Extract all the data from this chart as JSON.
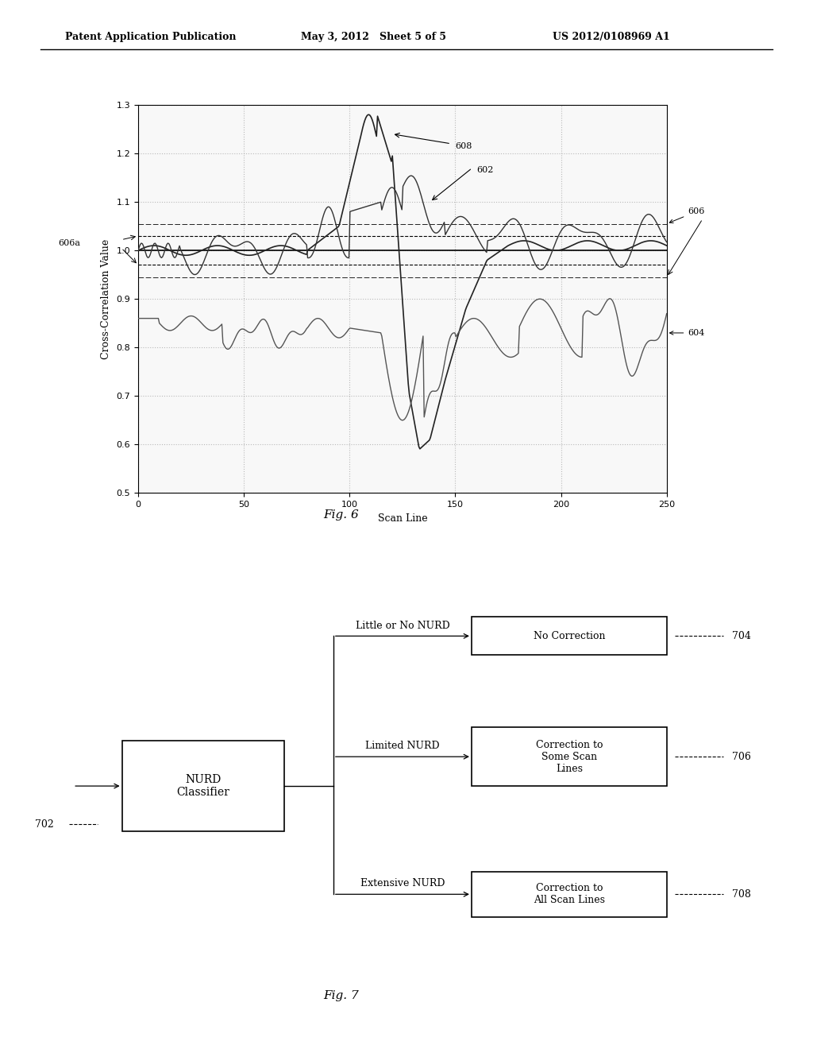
{
  "header_left": "Patent Application Publication",
  "header_mid": "May 3, 2012   Sheet 5 of 5",
  "header_right": "US 2012/0108969 A1",
  "fig6_title": "Fig. 6",
  "fig7_title": "Fig. 7",
  "xlabel": "Scan Line",
  "ylabel": "Cross-Correlation Value",
  "xlim": [
    0,
    250
  ],
  "ylim": [
    0.5,
    1.3
  ],
  "yticks": [
    0.5,
    0.6,
    0.7,
    0.8,
    0.9,
    1.0,
    1.1,
    1.2,
    1.3
  ],
  "xticks": [
    0,
    50,
    100,
    150,
    200,
    250
  ],
  "bg_color": "#ffffff",
  "grid_color": "#aaaaaa",
  "flowchart": {
    "box702_label": "NURD\nClassifier",
    "box702_ref": "702",
    "branch1_label": "Little or No NURD",
    "branch2_label": "Limited NURD",
    "branch3_label": "Extensive NURD",
    "box704_label": "No Correction",
    "box704_ref": "704",
    "box706_label": "Correction to\nSome Scan\nLines",
    "box706_ref": "706",
    "box708_label": "Correction to\nAll Scan Lines",
    "box708_ref": "708"
  }
}
